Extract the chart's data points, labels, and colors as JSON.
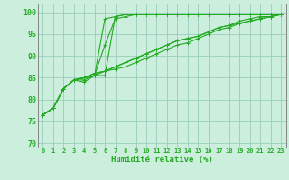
{
  "background_color": "#cceedd",
  "grid_color": "#99ccbb",
  "line_color": "#22aa22",
  "xlabel": "Humidité relative (%)",
  "xlabel_color": "#22aa22",
  "tick_color": "#22aa22",
  "xlim": [
    -0.5,
    23.5
  ],
  "ylim": [
    69,
    102
  ],
  "yticks": [
    70,
    75,
    80,
    85,
    90,
    95,
    100
  ],
  "xtick_labels": [
    "0",
    "1",
    "2",
    "3",
    "4",
    "5",
    "6",
    "7",
    "8",
    "9",
    "10",
    "11",
    "12",
    "13",
    "14",
    "15",
    "16",
    "17",
    "18",
    "19",
    "20",
    "21",
    "22",
    "23"
  ],
  "series": [
    [
      76.5,
      78.0,
      82.5,
      84.5,
      85.0,
      85.5,
      85.5,
      99.0,
      99.5,
      99.5,
      99.5,
      99.5,
      99.5,
      99.5,
      99.5,
      99.5,
      99.5,
      99.5,
      99.5,
      99.5,
      99.5,
      99.5,
      99.5,
      99.5
    ],
    [
      76.5,
      78.0,
      82.5,
      84.5,
      84.0,
      85.5,
      98.5,
      99.0,
      99.5,
      99.5,
      99.5,
      99.5,
      99.5,
      99.5,
      99.5,
      99.5,
      99.5,
      99.5,
      99.5,
      99.5,
      99.5,
      99.5,
      99.5,
      99.5
    ],
    [
      76.5,
      78.0,
      82.5,
      84.5,
      85.0,
      86.0,
      86.5,
      87.0,
      87.5,
      88.5,
      89.5,
      90.5,
      91.5,
      92.5,
      93.0,
      94.0,
      95.0,
      96.0,
      96.5,
      97.5,
      98.0,
      98.5,
      99.0,
      99.5
    ],
    [
      76.5,
      78.0,
      82.5,
      84.5,
      85.0,
      86.0,
      86.5,
      87.5,
      88.5,
      89.5,
      90.5,
      91.5,
      92.5,
      93.5,
      94.0,
      94.5,
      95.5,
      96.5,
      97.0,
      97.5,
      98.0,
      98.5,
      99.0,
      99.5
    ],
    [
      76.5,
      78.0,
      82.5,
      84.5,
      84.5,
      85.5,
      86.5,
      87.5,
      88.5,
      89.5,
      90.5,
      91.5,
      92.5,
      93.5,
      94.0,
      94.5,
      95.5,
      96.5,
      97.0,
      98.0,
      98.5,
      99.0,
      99.0,
      99.5
    ],
    [
      76.5,
      78.0,
      82.5,
      84.5,
      85.0,
      85.5,
      92.5,
      98.5,
      99.0,
      99.5,
      99.5,
      99.5,
      99.5,
      99.5,
      99.5,
      99.5,
      99.5,
      99.5,
      99.5,
      99.5,
      99.5,
      99.5,
      99.5,
      99.5
    ]
  ],
  "marker": "+",
  "markersize": 3,
  "linewidth": 0.8,
  "markeredgewidth": 0.7
}
